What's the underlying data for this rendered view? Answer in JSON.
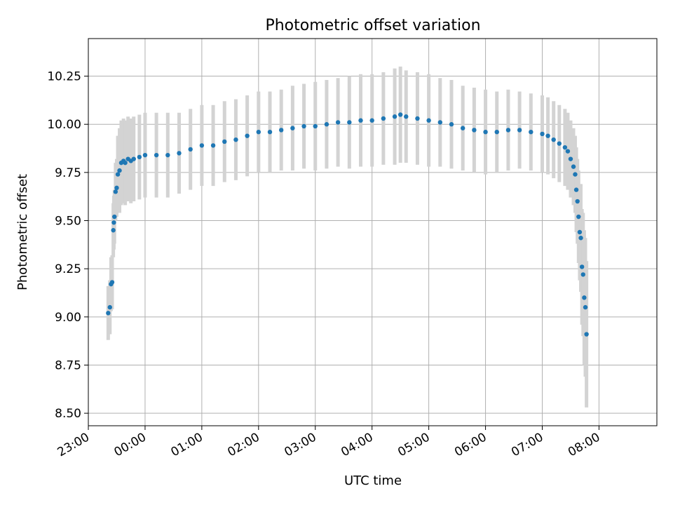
{
  "chart_data": {
    "type": "scatter",
    "title": "Photometric offset variation",
    "xlabel": "UTC time",
    "ylabel": "Photometric offset",
    "x_unit": "hours",
    "xlim": [
      -1.0,
      9.02
    ],
    "ylim": [
      8.435,
      10.445
    ],
    "grid": true,
    "x_ticks": [
      {
        "value": -1,
        "label": "23:00"
      },
      {
        "value": 0,
        "label": "00:00"
      },
      {
        "value": 1,
        "label": "01:00"
      },
      {
        "value": 2,
        "label": "02:00"
      },
      {
        "value": 3,
        "label": "03:00"
      },
      {
        "value": 4,
        "label": "04:00"
      },
      {
        "value": 5,
        "label": "05:00"
      },
      {
        "value": 6,
        "label": "06:00"
      },
      {
        "value": 7,
        "label": "07:00"
      },
      {
        "value": 8,
        "label": "08:00"
      }
    ],
    "y_ticks": [
      {
        "value": 8.5,
        "label": "8.50"
      },
      {
        "value": 8.75,
        "label": "8.75"
      },
      {
        "value": 9.0,
        "label": "9.00"
      },
      {
        "value": 9.25,
        "label": "9.25"
      },
      {
        "value": 9.5,
        "label": "9.50"
      },
      {
        "value": 9.75,
        "label": "9.75"
      },
      {
        "value": 10.0,
        "label": "10.00"
      },
      {
        "value": 10.25,
        "label": "10.25"
      }
    ],
    "series": [
      {
        "marker_color": "#1f77b4",
        "errorbar_color": "#d3d3d3",
        "x": [
          -0.65,
          -0.62,
          -0.6,
          -0.58,
          -0.56,
          -0.55,
          -0.54,
          -0.52,
          -0.5,
          -0.48,
          -0.45,
          -0.42,
          -0.38,
          -0.35,
          -0.3,
          -0.25,
          -0.2,
          -0.1,
          0.0,
          0.2,
          0.4,
          0.6,
          0.8,
          1.0,
          1.2,
          1.4,
          1.6,
          1.8,
          2.0,
          2.2,
          2.4,
          2.6,
          2.8,
          3.0,
          3.2,
          3.4,
          3.6,
          3.8,
          4.0,
          4.2,
          4.4,
          4.5,
          4.6,
          4.8,
          5.0,
          5.2,
          5.4,
          5.6,
          5.8,
          6.0,
          6.2,
          6.4,
          6.6,
          6.8,
          7.0,
          7.1,
          7.2,
          7.3,
          7.4,
          7.45,
          7.5,
          7.55,
          7.58,
          7.6,
          7.62,
          7.64,
          7.66,
          7.68,
          7.7,
          7.72,
          7.74,
          7.76,
          7.78
        ],
        "y": [
          9.02,
          9.05,
          9.17,
          9.18,
          9.45,
          9.49,
          9.52,
          9.65,
          9.67,
          9.74,
          9.76,
          9.8,
          9.81,
          9.8,
          9.82,
          9.81,
          9.82,
          9.83,
          9.84,
          9.84,
          9.84,
          9.85,
          9.87,
          9.89,
          9.89,
          9.91,
          9.92,
          9.94,
          9.96,
          9.96,
          9.97,
          9.98,
          9.99,
          9.99,
          10.0,
          10.01,
          10.01,
          10.02,
          10.02,
          10.03,
          10.04,
          10.05,
          10.04,
          10.03,
          10.02,
          10.01,
          10.0,
          9.98,
          9.97,
          9.96,
          9.96,
          9.97,
          9.97,
          9.96,
          9.95,
          9.94,
          9.92,
          9.9,
          9.88,
          9.86,
          9.82,
          9.78,
          9.74,
          9.66,
          9.6,
          9.52,
          9.44,
          9.41,
          9.26,
          9.22,
          9.1,
          9.05,
          8.91
        ],
        "err": [
          0.14,
          0.14,
          0.14,
          0.14,
          0.14,
          0.14,
          0.14,
          0.15,
          0.15,
          0.2,
          0.22,
          0.22,
          0.22,
          0.22,
          0.22,
          0.22,
          0.22,
          0.22,
          0.22,
          0.22,
          0.22,
          0.21,
          0.21,
          0.21,
          0.21,
          0.21,
          0.21,
          0.21,
          0.21,
          0.21,
          0.21,
          0.22,
          0.22,
          0.23,
          0.23,
          0.23,
          0.24,
          0.24,
          0.24,
          0.24,
          0.25,
          0.25,
          0.24,
          0.24,
          0.24,
          0.23,
          0.23,
          0.22,
          0.22,
          0.22,
          0.21,
          0.21,
          0.2,
          0.2,
          0.2,
          0.2,
          0.2,
          0.2,
          0.2,
          0.2,
          0.2,
          0.2,
          0.2,
          0.22,
          0.22,
          0.24,
          0.25,
          0.28,
          0.3,
          0.32,
          0.35,
          0.36,
          0.38
        ]
      }
    ]
  }
}
